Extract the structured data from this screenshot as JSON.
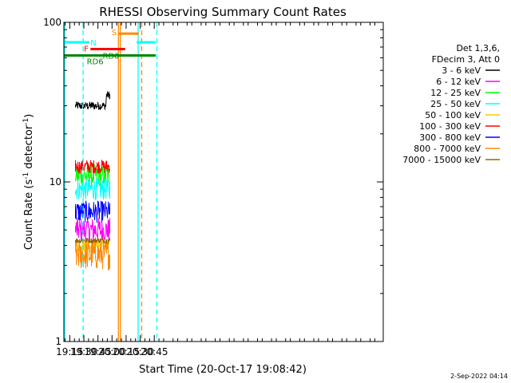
{
  "chart_data": {
    "type": "line",
    "title": "RHESSI Observing Summary Count Rates",
    "xlabel": "Start Time (20-Oct-17 19:08:42)",
    "ylabel_main": "Count Rate (s",
    "ylabel_sup1": "-1",
    "ylabel_mid": " detector",
    "ylabel_sup2": "-1",
    "ylabel_end": ")",
    "y_scale": "log",
    "ylim": [
      1,
      100
    ],
    "xlim_min": [
      1148.7,
      1489
    ],
    "x_ticks": [
      {
        "min": 1155,
        "label": "19:15"
      },
      {
        "min": 1170,
        "label": "19:30"
      },
      {
        "min": 1185,
        "label": "19:45"
      },
      {
        "min": 1200,
        "label": "20:00"
      },
      {
        "min": 1215,
        "label": "20:15"
      },
      {
        "min": 1230,
        "label": "20:30"
      },
      {
        "min": 1245,
        "label": "20:45"
      }
    ],
    "y_ticks": [
      {
        "value": 100,
        "label": "100"
      },
      {
        "value": 10,
        "label": "10"
      },
      {
        "value": 1,
        "label": "1"
      }
    ],
    "legend_header": [
      "Det 1,3,6,",
      "FDecim 3, Att 0"
    ],
    "legend_placement": "right",
    "data_start_min": 1161,
    "data_end_min": 1198,
    "series": [
      {
        "name": "3 - 6 keV",
        "color": "#000000",
        "level": 30,
        "end_level": 35,
        "spread": 0.06
      },
      {
        "name": "6 - 12 keV",
        "color": "#ff00ff",
        "level": 5,
        "end_level": 5,
        "spread": 0.18
      },
      {
        "name": "12 - 25 keV",
        "color": "#00ff00",
        "level": 11,
        "end_level": 11,
        "spread": 0.16
      },
      {
        "name": "25 - 50 keV",
        "color": "#00ffff",
        "level": 9,
        "end_level": 9,
        "spread": 0.16
      },
      {
        "name": "50 - 100 keV",
        "color": "#ffcc00",
        "level": 4,
        "end_level": 4,
        "spread": 0.1
      },
      {
        "name": "100 - 300 keV",
        "color": "#ff0000",
        "level": 12.5,
        "end_level": 12.5,
        "spread": 0.1
      },
      {
        "name": "300 - 800 keV",
        "color": "#0000ff",
        "level": 6.5,
        "end_level": 6.5,
        "spread": 0.16
      },
      {
        "name": "800 - 7000 keV",
        "color": "#ff8800",
        "level": 3.5,
        "end_level": 3.5,
        "spread": 0.22
      },
      {
        "name": "7000 - 15000 keV",
        "color": "#996600",
        "level": 4.3,
        "end_level": 4.3,
        "spread": 0.04
      }
    ],
    "annotations": [
      {
        "label": "N",
        "color": "#00ffff",
        "y": 75,
        "segments": [
          [
            1148.7,
            1176
          ]
        ],
        "label_min": 1177
      },
      {
        "label": "N",
        "color": "#00ffff",
        "y": 75,
        "segments": [
          [
            1226.3,
            1246.5
          ]
        ],
        "label_min": null
      },
      {
        "label": "F",
        "color": "#ff0000",
        "y": 68,
        "segments": [
          [
            1177,
            1214
          ]
        ],
        "label_min": 1175
      },
      {
        "label": "RD0",
        "color": "#008800",
        "y": 62,
        "segments": [
          [
            1190,
            1190
          ]
        ],
        "label_min": 1190
      },
      {
        "label": "RD6",
        "color": "#008800",
        "y": 62,
        "segments": [
          [
            1148.7,
            1246.5
          ]
        ],
        "label_min": 1173
      },
      {
        "label": "S",
        "color": "#ff8800",
        "y": 85,
        "segments": [
          [
            1207,
            1228.5
          ]
        ],
        "label_min": 1205
      }
    ],
    "vlines": [
      {
        "min": 1149.5,
        "color": "#00ffff",
        "style": "solid"
      },
      {
        "min": 1169.2,
        "color": "#00ffff",
        "style": "dashed"
      },
      {
        "min": 1206.8,
        "color": "#ff8800",
        "style": "solid"
      },
      {
        "min": 1208.8,
        "color": "#ff8800",
        "style": "solid"
      },
      {
        "min": 1227.8,
        "color": "#00ffff",
        "style": "solid"
      },
      {
        "min": 1231.6,
        "color": "#ff8800",
        "style": "dashed"
      },
      {
        "min": 1247.8,
        "color": "#00ffff",
        "style": "dashed"
      }
    ],
    "footer_date": "2-Sep-2022 04:14"
  }
}
